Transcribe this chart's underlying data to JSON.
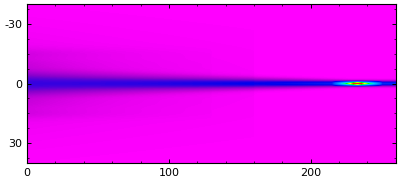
{
  "xlim": [
    0,
    260
  ],
  "ylim": [
    -40,
    40
  ],
  "xticks": [
    0,
    100,
    200
  ],
  "yticks": [
    -30,
    0,
    30
  ],
  "xlabel_vals": [
    "0",
    "100",
    "200"
  ],
  "ylabel_vals": [
    "30",
    "0",
    "-30"
  ],
  "background_color": "#FF00FF",
  "figsize": [
    4.0,
    1.82
  ],
  "dpi": 100,
  "focus_x": 230.0,
  "focus_y": 0.0,
  "start_width": 1.8,
  "end_width": 0.8,
  "fringe_region_end": 130.0
}
